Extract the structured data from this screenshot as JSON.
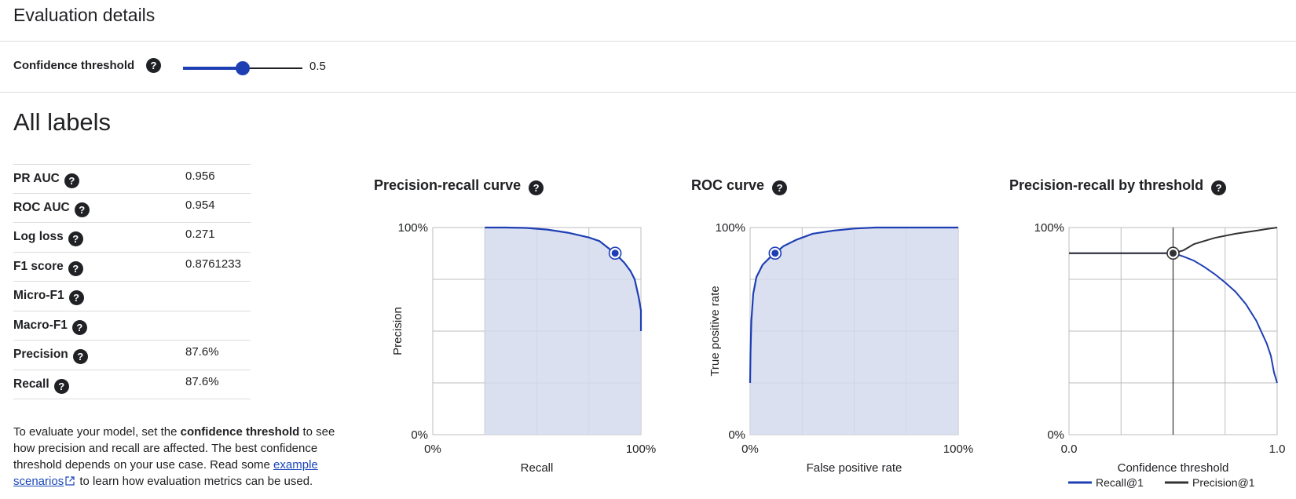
{
  "header": {
    "title": "Evaluation details"
  },
  "threshold": {
    "label": "Confidence threshold",
    "value": 0.5,
    "value_text": "0.5",
    "help_icon": "question-mark-circle-icon"
  },
  "section": {
    "title": "All labels"
  },
  "metrics": [
    {
      "name": "PR AUC",
      "value": "0.956"
    },
    {
      "name": "ROC AUC",
      "value": "0.954"
    },
    {
      "name": "Log loss",
      "value": "0.271"
    },
    {
      "name": "F1 score",
      "value": "0.8761233"
    },
    {
      "name": "Micro-F1",
      "value": ""
    },
    {
      "name": "Macro-F1",
      "value": ""
    },
    {
      "name": "Precision",
      "value": "87.6%"
    },
    {
      "name": "Recall",
      "value": "87.6%"
    }
  ],
  "description": {
    "part1": "To evaluate your model, set the ",
    "bold": "confidence threshold",
    "part2": " to see how precision and recall are affected. The best confidence threshold depends on your use case. Read some ",
    "link": "example scenarios",
    "part3": " to learn how evaluation metrics can be used."
  },
  "colors": {
    "accent": "#1e3fb4",
    "area_fill": "#d5dbef",
    "grid": "#bdbdbd",
    "precision_line": "#333333"
  },
  "chart_data": [
    {
      "type": "area",
      "title": "Precision-recall curve",
      "xlabel": "Recall",
      "ylabel": "Precision",
      "x_ticks": [
        "0%",
        "100%"
      ],
      "y_ticks": [
        "0%",
        "100%"
      ],
      "xlim": [
        0,
        1
      ],
      "ylim": [
        0,
        1
      ],
      "grid": true,
      "series": [
        {
          "x": [
            0.25,
            0.35,
            0.45,
            0.55,
            0.65,
            0.75,
            0.8,
            0.875,
            0.92,
            0.95,
            0.97,
            0.99,
            1.0,
            1.0
          ],
          "y": [
            1.0,
            1.0,
            0.998,
            0.99,
            0.975,
            0.952,
            0.935,
            0.876,
            0.83,
            0.79,
            0.75,
            0.66,
            0.6,
            0.5
          ]
        }
      ],
      "marker": {
        "x": 0.876,
        "y": 0.876
      }
    },
    {
      "type": "area",
      "title": "ROC curve",
      "xlabel": "False positive rate",
      "ylabel": "True positive rate",
      "x_ticks": [
        "0%",
        "100%"
      ],
      "y_ticks": [
        "0%",
        "100%"
      ],
      "xlim": [
        0,
        1
      ],
      "ylim": [
        0,
        1
      ],
      "grid": true,
      "series": [
        {
          "x": [
            0.0,
            0.002,
            0.006,
            0.015,
            0.03,
            0.06,
            0.09,
            0.12,
            0.16,
            0.22,
            0.3,
            0.4,
            0.5,
            0.6,
            0.8,
            1.0
          ],
          "y": [
            0.25,
            0.4,
            0.55,
            0.68,
            0.76,
            0.82,
            0.85,
            0.876,
            0.91,
            0.94,
            0.97,
            0.985,
            0.995,
            1.0,
            1.0,
            1.0
          ]
        }
      ],
      "marker": {
        "x": 0.12,
        "y": 0.876
      }
    },
    {
      "type": "line",
      "title": "Precision-recall by threshold",
      "xlabel": "Confidence threshold",
      "ylabel": "",
      "x_ticks": [
        "0.0",
        "1.0"
      ],
      "y_ticks": [
        "0%",
        "100%"
      ],
      "xlim": [
        0,
        1
      ],
      "ylim": [
        0,
        1
      ],
      "grid": true,
      "legend": "bottom",
      "series": [
        {
          "name": "Recall@1",
          "x": [
            0.0,
            0.5,
            0.55,
            0.6,
            0.65,
            0.7,
            0.75,
            0.8,
            0.85,
            0.9,
            0.95,
            0.97,
            0.985,
            1.0
          ],
          "y": [
            0.876,
            0.876,
            0.86,
            0.84,
            0.81,
            0.775,
            0.735,
            0.69,
            0.63,
            0.55,
            0.44,
            0.38,
            0.3,
            0.25
          ]
        },
        {
          "name": "Precision@1",
          "x": [
            0.0,
            0.5,
            0.55,
            0.6,
            0.7,
            0.8,
            0.9,
            0.95,
            1.0
          ],
          "y": [
            0.876,
            0.876,
            0.89,
            0.92,
            0.95,
            0.97,
            0.985,
            0.993,
            1.0
          ]
        }
      ],
      "marker": {
        "x": 0.5,
        "y": 0.876
      }
    }
  ]
}
